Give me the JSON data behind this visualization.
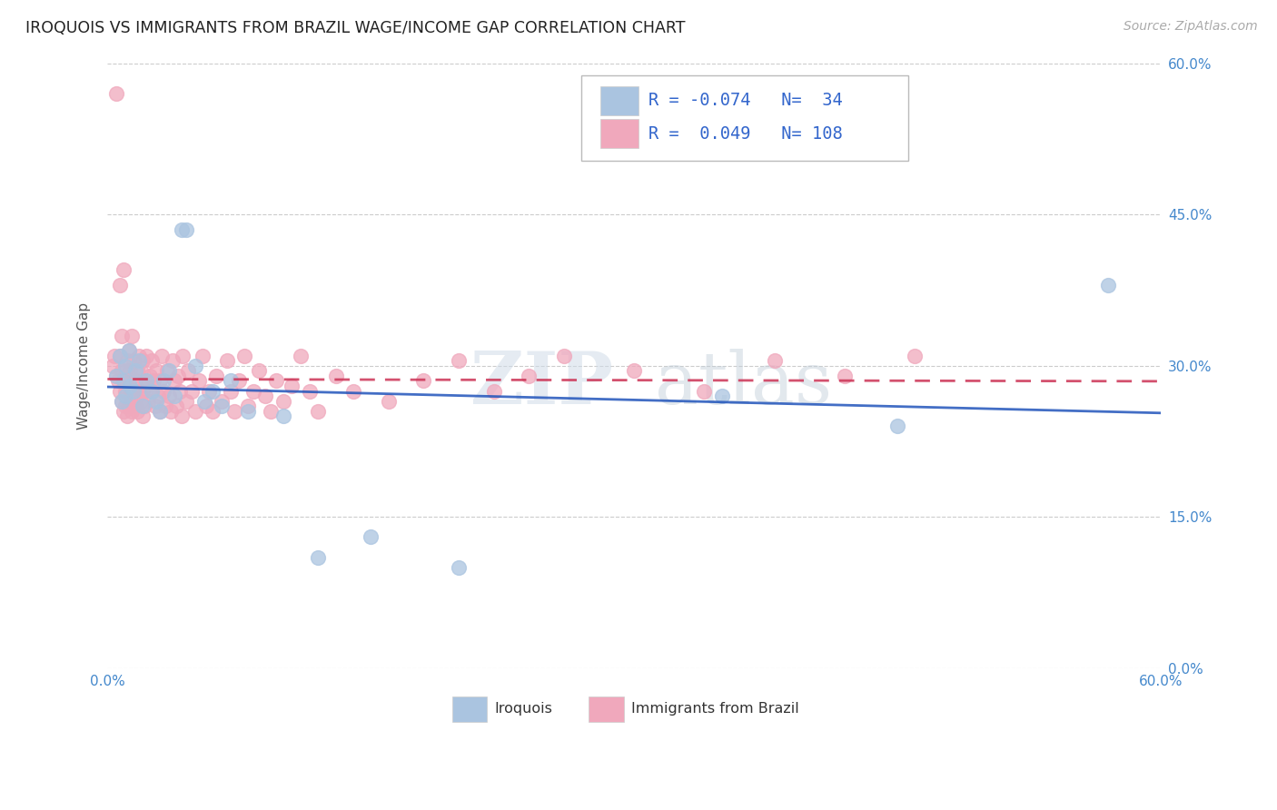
{
  "title": "IROQUOIS VS IMMIGRANTS FROM BRAZIL WAGE/INCOME GAP CORRELATION CHART",
  "source": "Source: ZipAtlas.com",
  "ylabel": "Wage/Income Gap",
  "xlim": [
    0.0,
    0.6
  ],
  "ylim": [
    0.0,
    0.6
  ],
  "x_ticks": [
    0.0,
    0.1,
    0.2,
    0.3,
    0.4,
    0.5,
    0.6
  ],
  "y_ticks": [
    0.0,
    0.15,
    0.3,
    0.45,
    0.6
  ],
  "watermark_part1": "ZIP",
  "watermark_part2": "atlas",
  "iroquois_color": "#aac4e0",
  "brazil_color": "#f0a8bc",
  "iroquois_line_color": "#2255bb",
  "brazil_line_color": "#cc3355",
  "R_iroquois": -0.074,
  "N_iroquois": 34,
  "R_brazil": 0.049,
  "N_brazil": 108,
  "tick_color": "#4488cc",
  "legend_label_1": "Iroquois",
  "legend_label_2": "Immigrants from Brazil",
  "iroquois_x": [
    0.005,
    0.007,
    0.008,
    0.009,
    0.01,
    0.01,
    0.012,
    0.013,
    0.015,
    0.016,
    0.018,
    0.02,
    0.022,
    0.025,
    0.028,
    0.03,
    0.032,
    0.035,
    0.038,
    0.042,
    0.045,
    0.05,
    0.055,
    0.06,
    0.065,
    0.07,
    0.08,
    0.1,
    0.12,
    0.15,
    0.2,
    0.35,
    0.45,
    0.57
  ],
  "iroquois_y": [
    0.29,
    0.31,
    0.265,
    0.285,
    0.27,
    0.3,
    0.315,
    0.28,
    0.275,
    0.295,
    0.305,
    0.26,
    0.285,
    0.275,
    0.265,
    0.255,
    0.285,
    0.295,
    0.27,
    0.435,
    0.435,
    0.3,
    0.265,
    0.275,
    0.26,
    0.285,
    0.255,
    0.25,
    0.11,
    0.13,
    0.1,
    0.27,
    0.24,
    0.38
  ],
  "brazil_x": [
    0.003,
    0.004,
    0.005,
    0.005,
    0.006,
    0.007,
    0.007,
    0.007,
    0.008,
    0.008,
    0.008,
    0.009,
    0.009,
    0.01,
    0.01,
    0.01,
    0.01,
    0.011,
    0.011,
    0.011,
    0.012,
    0.012,
    0.012,
    0.013,
    0.013,
    0.014,
    0.014,
    0.015,
    0.015,
    0.015,
    0.016,
    0.016,
    0.017,
    0.017,
    0.018,
    0.018,
    0.019,
    0.019,
    0.02,
    0.02,
    0.02,
    0.021,
    0.021,
    0.022,
    0.022,
    0.023,
    0.024,
    0.025,
    0.025,
    0.026,
    0.027,
    0.028,
    0.029,
    0.03,
    0.03,
    0.031,
    0.032,
    0.033,
    0.034,
    0.035,
    0.036,
    0.037,
    0.038,
    0.039,
    0.04,
    0.041,
    0.042,
    0.043,
    0.045,
    0.046,
    0.048,
    0.05,
    0.052,
    0.054,
    0.056,
    0.058,
    0.06,
    0.062,
    0.065,
    0.068,
    0.07,
    0.072,
    0.075,
    0.078,
    0.08,
    0.083,
    0.086,
    0.09,
    0.093,
    0.096,
    0.1,
    0.105,
    0.11,
    0.115,
    0.12,
    0.13,
    0.14,
    0.16,
    0.18,
    0.2,
    0.22,
    0.24,
    0.26,
    0.3,
    0.34,
    0.38,
    0.42,
    0.46
  ],
  "brazil_y": [
    0.3,
    0.31,
    0.29,
    0.57,
    0.285,
    0.275,
    0.31,
    0.38,
    0.265,
    0.295,
    0.33,
    0.255,
    0.395,
    0.275,
    0.285,
    0.26,
    0.295,
    0.25,
    0.275,
    0.305,
    0.26,
    0.285,
    0.315,
    0.27,
    0.295,
    0.255,
    0.33,
    0.275,
    0.26,
    0.305,
    0.285,
    0.27,
    0.295,
    0.255,
    0.275,
    0.31,
    0.265,
    0.295,
    0.25,
    0.275,
    0.305,
    0.285,
    0.26,
    0.28,
    0.31,
    0.265,
    0.29,
    0.275,
    0.305,
    0.285,
    0.26,
    0.295,
    0.27,
    0.255,
    0.285,
    0.31,
    0.275,
    0.26,
    0.295,
    0.27,
    0.255,
    0.305,
    0.285,
    0.26,
    0.29,
    0.275,
    0.25,
    0.31,
    0.265,
    0.295,
    0.275,
    0.255,
    0.285,
    0.31,
    0.26,
    0.275,
    0.255,
    0.29,
    0.265,
    0.305,
    0.275,
    0.255,
    0.285,
    0.31,
    0.26,
    0.275,
    0.295,
    0.27,
    0.255,
    0.285,
    0.265,
    0.28,
    0.31,
    0.275,
    0.255,
    0.29,
    0.275,
    0.265,
    0.285,
    0.305,
    0.275,
    0.29,
    0.31,
    0.295,
    0.275,
    0.305,
    0.29,
    0.31
  ]
}
